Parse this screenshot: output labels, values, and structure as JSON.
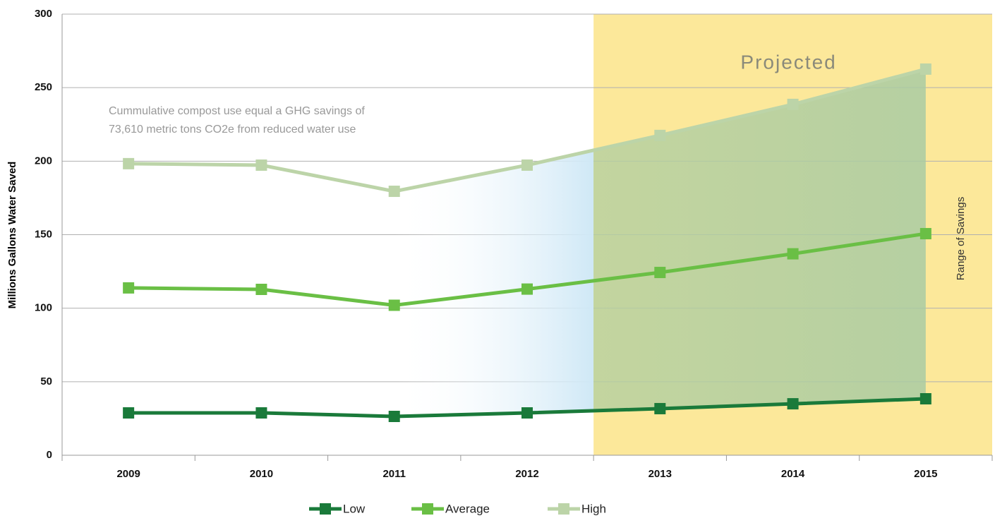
{
  "chart_data": {
    "type": "line",
    "y_axis_label": "Millions Gallons Water Saved",
    "categories": [
      "2009",
      "2010",
      "2011",
      "2012",
      "2013",
      "2014",
      "2015"
    ],
    "series": [
      {
        "name": "Low",
        "color": "#1a7a3a",
        "values": [
          28.8,
          28.8,
          26.4,
          28.8,
          31.7,
          35,
          38.4
        ]
      },
      {
        "name": "Average",
        "color": "#6abf45",
        "values": [
          113.8,
          112.8,
          102,
          113,
          124.3,
          137,
          150.7
        ]
      },
      {
        "name": "High",
        "color": "#bcd4a8",
        "values": [
          198.3,
          197.3,
          179.5,
          197.3,
          217.5,
          238.6,
          262.6
        ]
      }
    ],
    "ylim": [
      0,
      300
    ],
    "yticks": [
      0,
      50,
      100,
      150,
      200,
      250,
      300
    ],
    "grid": true,
    "projected": {
      "label": "Projected",
      "start_category": "2013",
      "color": "#fce89a"
    },
    "range_label": "Range of Savings",
    "annotation": [
      "Cummulative compost use equal a GHG savings of",
      "73,610 metric tons CO2e from reduced water use"
    ],
    "legend": "bottom"
  }
}
